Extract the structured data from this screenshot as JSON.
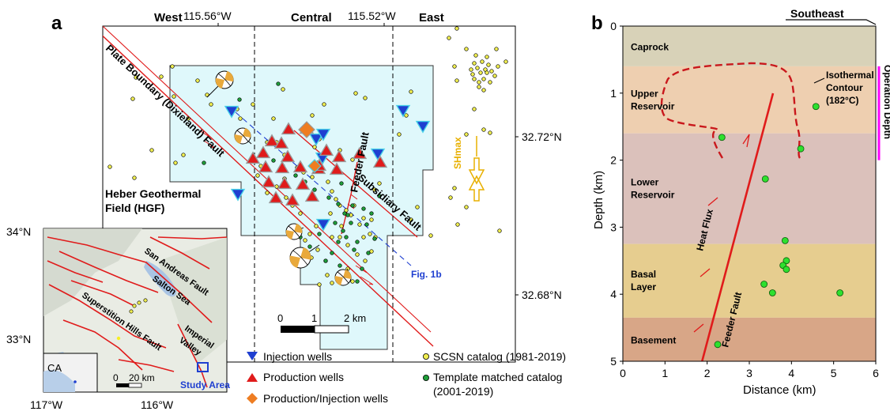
{
  "panel_a": {
    "label": "a",
    "header": {
      "west": "West",
      "central": "Central",
      "east": "East"
    },
    "lon_ticks": [
      "115.56°W",
      "115.52°W"
    ],
    "lat_ticks": [
      "32.72°N",
      "32.68°N"
    ],
    "field_label_line1": "Heber Geothermal",
    "field_label_line2": "Field (HGF)",
    "plate_boundary_label": "Plate Boundary (Dixieland) Fault",
    "feeder_fault_label": "Feeder Fault",
    "subsidiary_fault_label": "Subsidiary Fault",
    "fig1b_label": "Fig. 1b",
    "shmax_label": "SHmax",
    "scalebar": {
      "labels": [
        "0",
        "1",
        "2 km"
      ]
    },
    "legend": {
      "injection": "Injection wells",
      "production": "Production wells",
      "prod_inj": "Production/Injection wells",
      "scsn": "SCSN catalog (1981-2019)",
      "template_line1": "Template matched catalog",
      "template_line2": "(2001-2019)"
    },
    "colors": {
      "injection": "#1f3fd0",
      "production": "#e01b1b",
      "prod_inj": "#ee7d22",
      "scsn": "#f0ee50",
      "template": "#1f9e3a",
      "field_fill": "#dff8fb",
      "fault_red": "#e01b1b"
    }
  },
  "inset": {
    "lat_ticks": [
      "34°N",
      "33°N"
    ],
    "lon_ticks": [
      "117°W",
      "116°W"
    ],
    "labels": {
      "san_andreas": "San Andreas Fault",
      "salton_sea": "Salton Sea",
      "superstition": "Superstition Hills Fault",
      "imperial_line1": "Imperial",
      "imperial_line2": "Valley",
      "study_area": "Study Area",
      "ca": "CA"
    },
    "scalebar": {
      "labels": [
        "0",
        "20 km"
      ]
    }
  },
  "panel_b": {
    "label": "b",
    "southeast": "Southeast",
    "ylabel": "Depth (km)",
    "xlabel": "Distance (km)",
    "x_ticks": [
      "0",
      "1",
      "2",
      "3",
      "4",
      "5",
      "6"
    ],
    "y_ticks": [
      "0",
      "1",
      "2",
      "3",
      "4",
      "5"
    ],
    "layers": [
      {
        "name_line1": "Caprock",
        "name_line2": "",
        "top_km": 0,
        "bottom_km": 0.6,
        "color": "#d8d2b8"
      },
      {
        "name_line1": "Upper",
        "name_line2": "Reservoir",
        "top_km": 0.6,
        "bottom_km": 1.6,
        "color": "#eecfb0"
      },
      {
        "name_line1": "Lower",
        "name_line2": "Reservoir",
        "top_km": 1.6,
        "bottom_km": 3.25,
        "color": "#dbc1bb"
      },
      {
        "name_line1": "Basal",
        "name_line2": "Layer",
        "top_km": 3.25,
        "bottom_km": 4.35,
        "color": "#e6cd8f"
      },
      {
        "name_line1": "Basement",
        "name_line2": "",
        "top_km": 4.35,
        "bottom_km": 5,
        "color": "#d8a687"
      }
    ],
    "isotherm_line1": "Isothermal",
    "isotherm_line2": "Contour",
    "isotherm_line3": "(182°C)",
    "heat_flux": "Heat Flux",
    "feeder_fault": "Feeder Fault",
    "operation_depth": "Operation Depth",
    "operation_depth_range_km": [
      0.6,
      2.0
    ],
    "events_km": [
      [
        2.35,
        1.66
      ],
      [
        4.58,
        1.2
      ],
      [
        4.22,
        1.83
      ],
      [
        3.38,
        2.28
      ],
      [
        3.85,
        3.2
      ],
      [
        3.88,
        3.5
      ],
      [
        3.8,
        3.57
      ],
      [
        3.88,
        3.63
      ],
      [
        3.35,
        3.85
      ],
      [
        3.55,
        3.98
      ],
      [
        5.15,
        3.98
      ],
      [
        2.25,
        4.75
      ]
    ]
  }
}
